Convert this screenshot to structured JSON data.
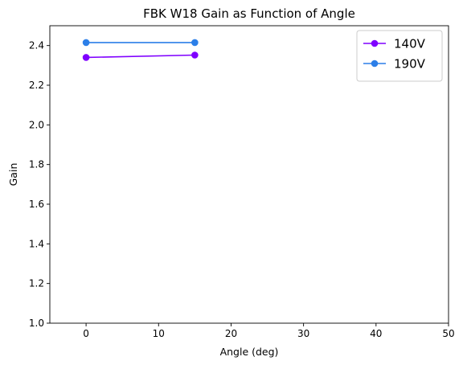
{
  "chart_data": {
    "type": "line",
    "title": "FBK W18 Gain as Function of Angle",
    "xlabel": "Angle (deg)",
    "ylabel": "Gain",
    "xlim": [
      -5,
      50
    ],
    "ylim": [
      1.0,
      2.5
    ],
    "xticks": [
      0,
      10,
      20,
      30,
      40,
      50
    ],
    "yticks": [
      1.0,
      1.2,
      1.4,
      1.6,
      1.8,
      2.0,
      2.2,
      2.4
    ],
    "grid": false,
    "legend_position": "top-right",
    "series": [
      {
        "name": "140V",
        "color": "#7f00ff",
        "marker": "circle",
        "x": [
          0,
          15
        ],
        "y": [
          2.34,
          2.352
        ]
      },
      {
        "name": "190V",
        "color": "#2c7fe8",
        "marker": "circle",
        "x": [
          0,
          15
        ],
        "y": [
          2.415,
          2.415
        ]
      }
    ]
  }
}
